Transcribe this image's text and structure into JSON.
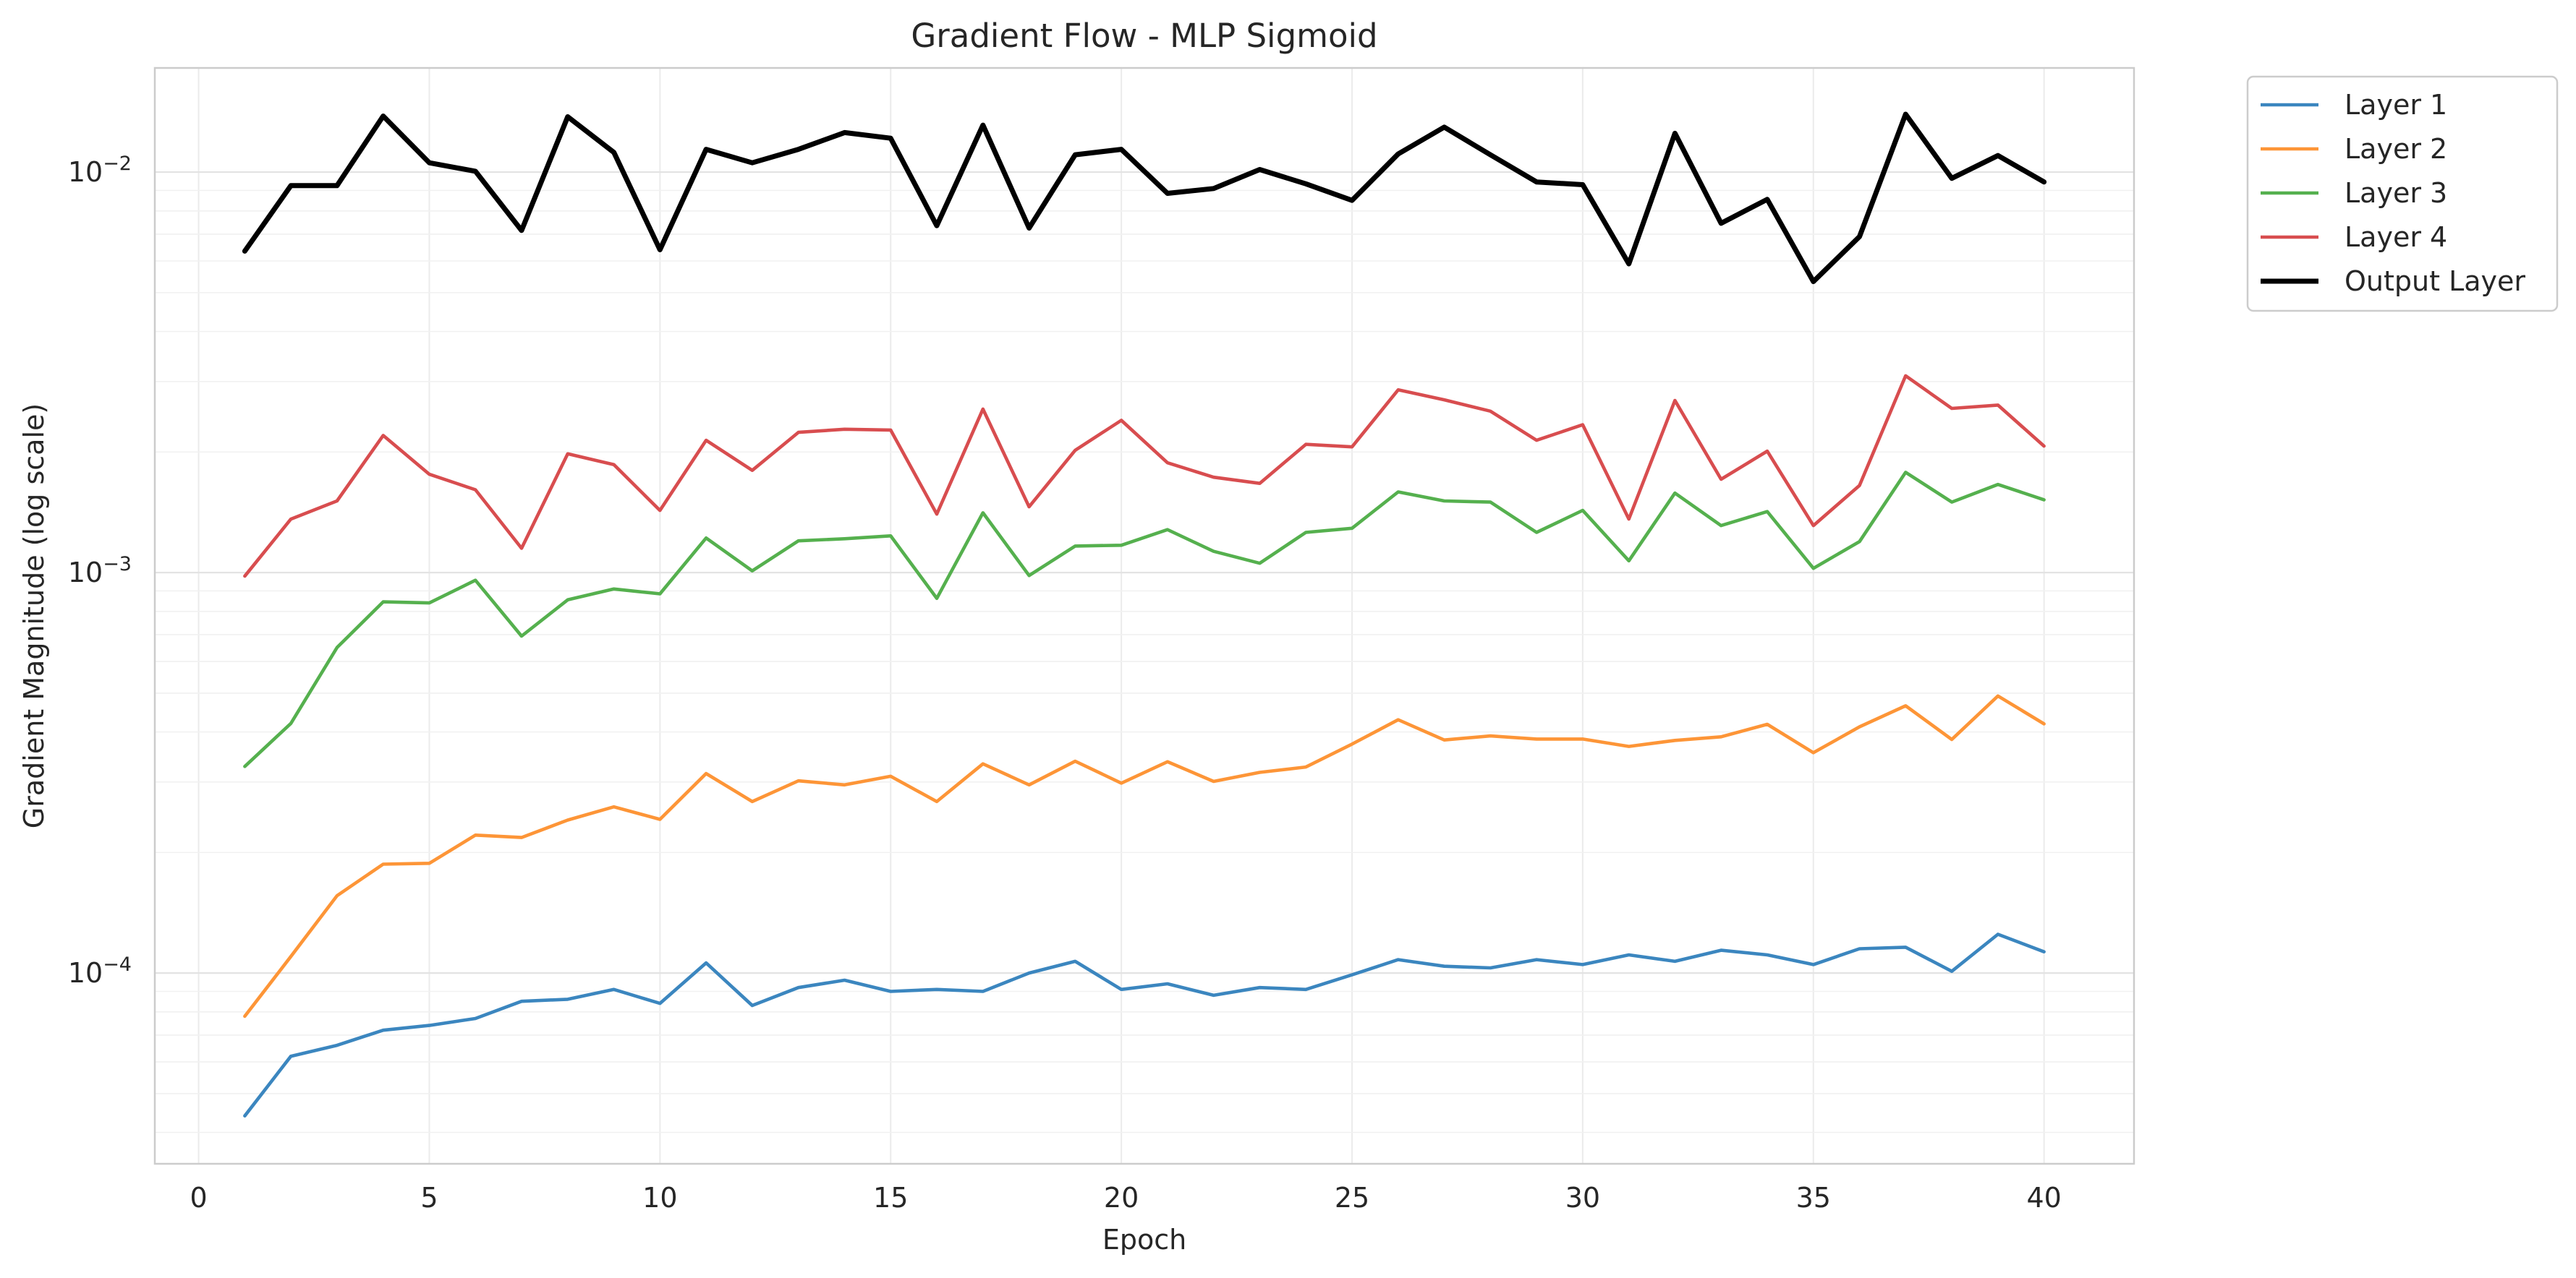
{
  "chart_data": {
    "type": "line",
    "title": "Gradient Flow - MLP Sigmoid",
    "xlabel": "Epoch",
    "ylabel": "Gradient Magnitude (log scale)",
    "xlim": [
      -0.95,
      41.95
    ],
    "ylim": [
      3.34e-05,
      0.0182
    ],
    "yscale": "log",
    "grid": true,
    "legend_position": "outside-top-right",
    "x_ticks": [
      0,
      5,
      10,
      15,
      20,
      25,
      30,
      35,
      40
    ],
    "x_tick_labels": [
      "0",
      "5",
      "10",
      "15",
      "20",
      "25",
      "30",
      "35",
      "40"
    ],
    "y_ticks": [
      0.0001,
      0.001,
      0.01
    ],
    "y_tick_labels": [
      {
        "base": "10",
        "exp": "−4"
      },
      {
        "base": "10",
        "exp": "−3"
      },
      {
        "base": "10",
        "exp": "−2"
      }
    ],
    "x": [
      1,
      2,
      3,
      4,
      5,
      6,
      7,
      8,
      9,
      10,
      11,
      12,
      13,
      14,
      15,
      16,
      17,
      18,
      19,
      20,
      21,
      22,
      23,
      24,
      25,
      26,
      27,
      28,
      29,
      30,
      31,
      32,
      33,
      34,
      35,
      36,
      37,
      38,
      39,
      40
    ],
    "series": [
      {
        "name": "Layer 1",
        "color": "#3b86bf",
        "values": [
          4.4e-05,
          6.2e-05,
          6.6e-05,
          7.2e-05,
          7.4e-05,
          7.7e-05,
          8.5e-05,
          8.6e-05,
          9.1e-05,
          8.4e-05,
          0.000106,
          8.3e-05,
          9.2e-05,
          9.6e-05,
          9e-05,
          9.1e-05,
          9e-05,
          0.0001,
          0.000107,
          9.1e-05,
          9.4e-05,
          8.8e-05,
          9.2e-05,
          9.1e-05,
          9.9e-05,
          0.000108,
          0.000104,
          0.000103,
          0.000108,
          0.000105,
          0.000111,
          0.000107,
          0.000114,
          0.000111,
          0.000105,
          0.000115,
          0.000116,
          0.000101,
          0.000125,
          0.000113
        ]
      },
      {
        "name": "Layer 2",
        "color": "#fd9537",
        "values": [
          7.8e-05,
          0.00011,
          0.000156,
          0.000187,
          0.000188,
          0.000221,
          0.000218,
          0.000241,
          0.00026,
          0.000242,
          0.000315,
          0.000268,
          0.000302,
          0.000295,
          0.00031,
          0.000268,
          0.000333,
          0.000295,
          0.000338,
          0.000298,
          0.000337,
          0.000301,
          0.000317,
          0.000327,
          0.000373,
          0.000429,
          0.000382,
          0.000391,
          0.000384,
          0.000384,
          0.000368,
          0.000381,
          0.000389,
          0.000418,
          0.000355,
          0.000412,
          0.000465,
          0.000383,
          0.000492,
          0.000419
        ]
      },
      {
        "name": "Layer 3",
        "color": "#55b04e",
        "values": [
          0.000328,
          0.00042,
          0.00065,
          0.000845,
          0.00084,
          0.000957,
          0.000694,
          0.000855,
          0.00091,
          0.000885,
          0.00122,
          0.00101,
          0.0012,
          0.001215,
          0.001235,
          0.000862,
          0.00141,
          0.000983,
          0.001165,
          0.00117,
          0.00128,
          0.00113,
          0.001055,
          0.00126,
          0.00129,
          0.00159,
          0.00151,
          0.0015,
          0.00126,
          0.00143,
          0.00107,
          0.00158,
          0.00131,
          0.00142,
          0.001025,
          0.001195,
          0.00178,
          0.0015,
          0.00166,
          0.00152
        ]
      },
      {
        "name": "Layer 4",
        "color": "#d84d4f",
        "values": [
          0.00098,
          0.00136,
          0.00151,
          0.0022,
          0.00176,
          0.00161,
          0.00115,
          0.00198,
          0.00186,
          0.00143,
          0.00214,
          0.0018,
          0.00224,
          0.00228,
          0.00227,
          0.0014,
          0.00256,
          0.00146,
          0.00202,
          0.0024,
          0.00188,
          0.00173,
          0.00167,
          0.00209,
          0.00206,
          0.00286,
          0.0027,
          0.00253,
          0.00214,
          0.00234,
          0.00136,
          0.00269,
          0.00171,
          0.00201,
          0.00131,
          0.00165,
          0.0031,
          0.00257,
          0.00262,
          0.00207
        ]
      },
      {
        "name": "Output Layer",
        "color": "#000000",
        "values": [
          0.00635,
          0.00925,
          0.00925,
          0.0138,
          0.01055,
          0.01005,
          0.00715,
          0.01375,
          0.0112,
          0.0064,
          0.0114,
          0.01055,
          0.0114,
          0.01255,
          0.01215,
          0.00735,
          0.0131,
          0.00725,
          0.01105,
          0.0114,
          0.00885,
          0.0091,
          0.01015,
          0.00935,
          0.0085,
          0.0111,
          0.01295,
          0.01105,
          0.00945,
          0.0093,
          0.0059,
          0.0125,
          0.00745,
          0.00855,
          0.00533,
          0.0069,
          0.01395,
          0.00965,
          0.011,
          0.00945
        ]
      }
    ]
  }
}
